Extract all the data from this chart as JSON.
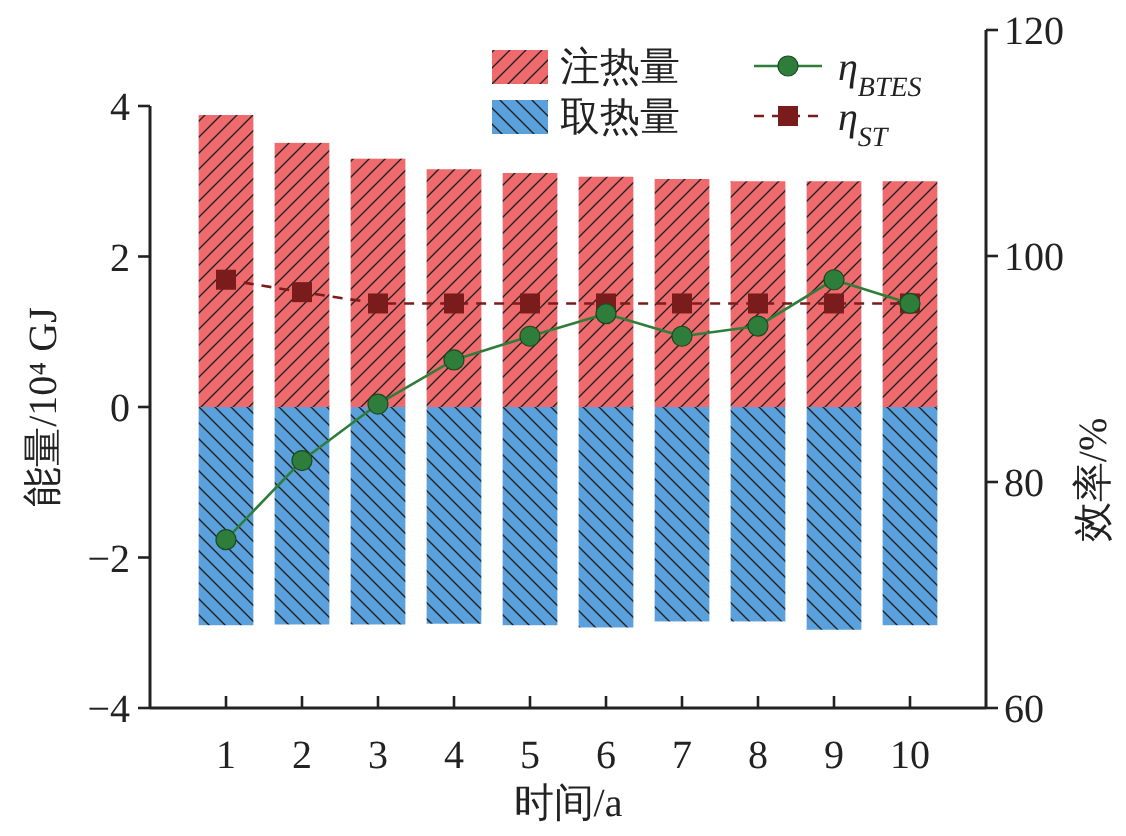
{
  "chart_data": {
    "type": "bar",
    "stacked": true,
    "categories": [
      "1",
      "2",
      "3",
      "4",
      "5",
      "6",
      "7",
      "8",
      "9",
      "10"
    ],
    "xlabel": "时间/a",
    "ylabel": "能量/10⁴ GJ",
    "y2label": "效率/%",
    "ylim": [
      -4,
      4
    ],
    "yticks": [
      {
        "value": -4,
        "label": "−4"
      },
      {
        "value": -2,
        "label": "−2"
      },
      0,
      2,
      4
    ],
    "y2lim": [
      60,
      120
    ],
    "y2ticks": [
      60,
      80,
      100,
      120
    ],
    "grid": false,
    "legend": "top",
    "series": [
      {
        "name": "注热量",
        "color": "#ef6a6d",
        "values": [
          3.88,
          3.51,
          3.3,
          3.16,
          3.11,
          3.06,
          3.03,
          3.0,
          3.0,
          3.0
        ]
      },
      {
        "name": "取热量",
        "color": "#5aa0dc",
        "values": [
          -2.9,
          -2.89,
          -2.89,
          -2.88,
          -2.9,
          -2.93,
          -2.85,
          -2.85,
          -2.96,
          -2.9
        ]
      },
      {
        "name": "η$_{BTES}$",
        "type": "line",
        "axis": "y2",
        "color": "#2f7d3a",
        "marker": "circle",
        "line_style": "solid",
        "values": [
          74.9,
          81.9,
          86.9,
          90.8,
          92.9,
          94.9,
          92.9,
          93.8,
          97.9,
          95.8
        ]
      },
      {
        "name": "η$_{ST}$",
        "type": "line",
        "axis": "y2",
        "color": "#7a1c1c",
        "marker": "square",
        "line_style": "dashed",
        "values": [
          97.9,
          96.8,
          95.8,
          95.8,
          95.8,
          95.8,
          95.8,
          95.8,
          95.8,
          95.8
        ]
      }
    ]
  }
}
